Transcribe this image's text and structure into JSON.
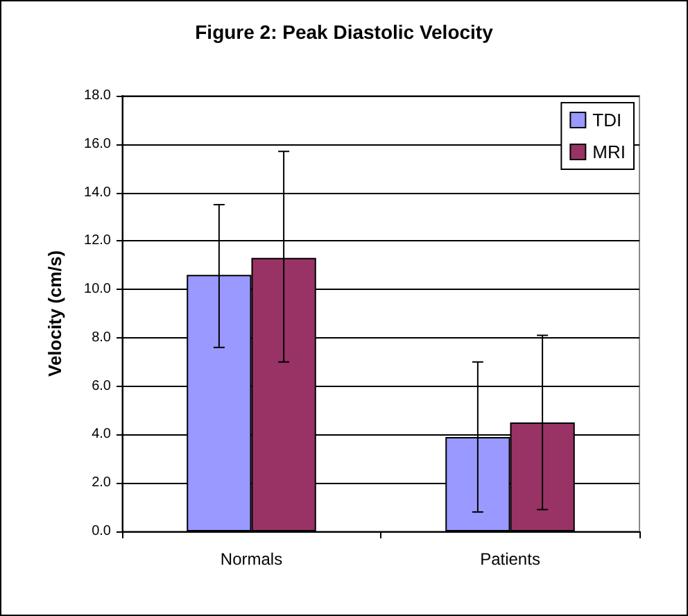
{
  "chart_data": {
    "type": "bar",
    "title": "Figure 2: Peak Diastolic Velocity",
    "ylabel": "Velocity (cm/s)",
    "categories": [
      "Normals",
      "Patients"
    ],
    "series": [
      {
        "name": "TDI",
        "color": "#9999ff",
        "values": [
          10.6,
          3.9
        ],
        "errors": [
          [
            7.6,
            13.5
          ],
          [
            0.8,
            7.0
          ]
        ]
      },
      {
        "name": "MRI",
        "color": "#993366",
        "values": [
          11.3,
          4.5
        ],
        "errors": [
          [
            7.0,
            15.7
          ],
          [
            0.9,
            8.1
          ]
        ]
      }
    ],
    "ylim": [
      0,
      18
    ],
    "yticks": [
      {
        "value": 0,
        "label": "0.0"
      },
      {
        "value": 2,
        "label": "2.0"
      },
      {
        "value": 4,
        "label": "4.0"
      },
      {
        "value": 6,
        "label": "6.0"
      },
      {
        "value": 8,
        "label": "8.0"
      },
      {
        "value": 10,
        "label": "10.0"
      },
      {
        "value": 12,
        "label": "12.0"
      },
      {
        "value": 14,
        "label": "14.0"
      },
      {
        "value": 16,
        "label": "16.0"
      },
      {
        "value": 18,
        "label": "18.0"
      }
    ],
    "grid": "y",
    "legend": "top right"
  }
}
